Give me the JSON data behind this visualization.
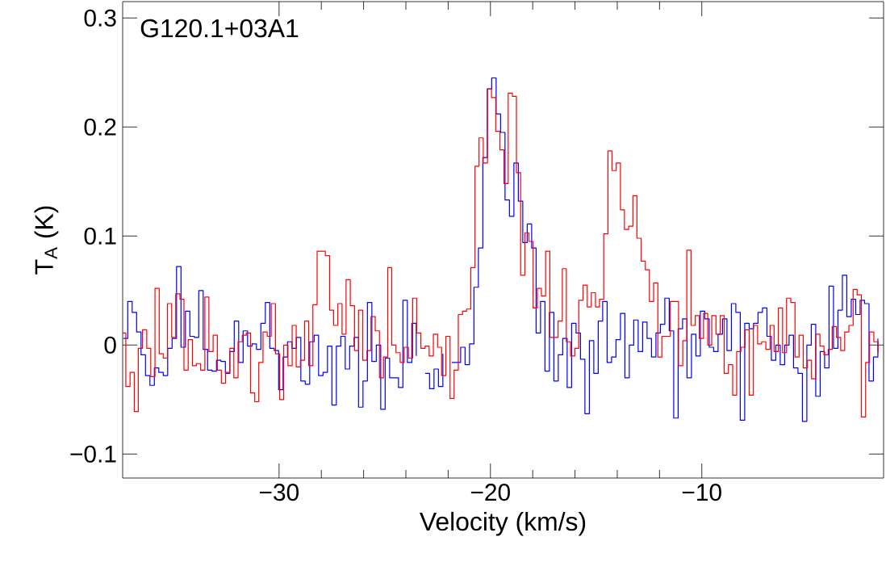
{
  "chart_data": {
    "type": "step",
    "title": "G120.1+03A1",
    "xlabel": "Velocity (km/s)",
    "ylabel": "T$_{A}$ (K)",
    "xlim": [
      -37.4,
      -1.4
    ],
    "ylim": [
      -0.122,
      0.315
    ],
    "xticks": [
      {
        "value": -30,
        "label": "−30"
      },
      {
        "value": -20,
        "label": "−20"
      },
      {
        "value": -10,
        "label": "−10"
      }
    ],
    "yticks": [
      {
        "value": -0.1,
        "label": "−0.1"
      },
      0,
      0.1,
      0.2,
      0.3
    ],
    "line_style": "solid",
    "series": [
      {
        "color": "#0000ff",
        "x": [
          -37.37,
          -37.16,
          -36.95,
          -36.74,
          -36.53,
          -36.32,
          -36.11,
          -35.9,
          -35.69,
          -35.48,
          -35.27,
          -35.06,
          -34.85,
          -34.64,
          -34.43,
          -34.22,
          -34.01,
          -33.8,
          -33.59,
          -33.38,
          -33.17,
          -32.96,
          -32.75,
          -32.54,
          -32.33,
          -32.12,
          -31.91,
          -31.7,
          -31.49,
          -31.28,
          -31.07,
          -30.86,
          -30.65,
          -30.44,
          -30.23,
          -30.02,
          -29.81,
          -29.6,
          -29.39,
          -29.18,
          -28.97,
          -28.76,
          -28.55,
          -28.34,
          -28.13,
          -27.92,
          -27.71,
          -27.5,
          -27.29,
          -27.08,
          -26.87,
          -26.66,
          -26.45,
          -26.24,
          -26.03,
          -25.82,
          -25.61,
          -25.4,
          -25.19,
          -24.98,
          -24.77,
          -24.56,
          -24.35,
          -24.14,
          -23.93,
          -23.72,
          -23.51,
          -23.3,
          -23.09,
          -22.88,
          -22.67,
          -22.46,
          -22.25,
          -22.04,
          -21.83,
          -21.62,
          -21.41,
          -21.2,
          -20.99,
          -20.78,
          -20.57,
          -20.36,
          -20.15,
          -19.94,
          -19.73,
          -19.52,
          -19.31,
          -19.1,
          -18.89,
          -18.68,
          -18.47,
          -18.26,
          -18.05,
          -17.84,
          -17.63,
          -17.42,
          -17.21,
          -17.0,
          -16.79,
          -16.58,
          -16.37,
          -16.16,
          -15.95,
          -15.74,
          -15.53,
          -15.32,
          -15.11,
          -14.9,
          -14.69,
          -14.48,
          -14.27,
          -14.06,
          -13.85,
          -13.64,
          -13.43,
          -13.22,
          -13.01,
          -12.8,
          -12.59,
          -12.38,
          -12.17,
          -11.96,
          -11.75,
          -11.54,
          -11.33,
          -11.12,
          -10.91,
          -10.7,
          -10.49,
          -10.28,
          -10.07,
          -9.86,
          -9.65,
          -9.44,
          -9.23,
          -9.02,
          -8.81,
          -8.6,
          -8.39,
          -8.18,
          -7.97,
          -7.76,
          -7.55,
          -7.34,
          -7.13,
          -6.92,
          -6.71,
          -6.5,
          -6.29,
          -6.08,
          -5.87,
          -5.66,
          -5.45,
          -5.24,
          -5.03,
          -4.82,
          -4.61,
          -4.4,
          -4.19,
          -3.98,
          -3.77,
          -3.56,
          -3.35,
          -3.14,
          -2.93,
          -2.72,
          -2.51,
          -2.3,
          -2.09,
          -1.88,
          -1.67
        ],
        "values": [
          0.006,
          0.04,
          0.03,
          0.012,
          -0.009,
          -0.028,
          -0.037,
          -0.021,
          -0.025,
          -0.028,
          -0.003,
          0.006,
          0.072,
          -0.002,
          0.031,
          0.008,
          0.007,
          0.05,
          -0.004,
          -0.023,
          -0.024,
          -0.014,
          -0.015,
          -0.026,
          -0.006,
          0.022,
          -0.016,
          0.013,
          -0.001,
          0.001,
          -0.004,
          0.02,
          0.039,
          -0.003,
          -0.005,
          -0.041,
          -0.011,
          0.003,
          -0.003,
          0.007,
          -0.033,
          -0.036,
          0.003,
          0.009,
          -0.028,
          -0.025,
          -0.001,
          -0.055,
          -0.001,
          0.008,
          -0.022,
          -0.001,
          0.007,
          -0.057,
          -0.033,
          0.039,
          -0.015,
          0.0,
          -0.059,
          -0.012,
          -0.03,
          -0.03,
          -0.039,
          0.041,
          -0.016,
          0.02,
          -0.01,
          null,
          -0.026,
          -0.04,
          -0.022,
          -0.038,
          -0.008,
          null,
          -0.016,
          -0.016,
          -0.002,
          -0.018,
          0.001,
          0.053,
          0.089,
          0.172,
          0.235,
          0.245,
          0.212,
          0.195,
          0.133,
          0.118,
          0.167,
          0.132,
          0.094,
          0.111,
          0.089,
          0.011,
          0.04,
          -0.024,
          0.03,
          -0.033,
          -0.009,
          0.006,
          -0.039,
          0.02,
          0.011,
          -0.013,
          -0.063,
          0.004,
          -0.026,
          0.022,
          0.04,
          -0.016,
          -0.011,
          0.005,
          0.029,
          -0.03,
          0.0,
          0.023,
          -0.006,
          0.021,
          0.006,
          -0.011,
          0.011,
          0.019,
          0.043,
          0.013,
          -0.067,
          0.015,
          0.024,
          -0.03,
          0.01,
          -0.01,
          0.031,
          0.024,
          -0.002,
          -0.006,
          0.01,
          0.024,
          -0.005,
          0.038,
          0.03,
          -0.069,
          0.02,
          0.015,
          0.02,
          0.03,
          0.034,
          0.008,
          -0.014,
          0.0,
          -0.018,
          0.0,
          0.009,
          -0.021,
          -0.026,
          -0.07,
          0.0,
          0.019,
          -0.047,
          -0.006,
          -0.021,
          0.054,
          -0.003,
          0.032,
          0.064,
          0.026,
          0.042,
          0.028,
          0.041,
          0.038,
          -0.033,
          -0.011,
          0.006
        ]
      },
      {
        "color": "#ff0000",
        "x": [
          -37.4,
          -37.25,
          -37.05,
          -36.85,
          -36.66,
          -36.46,
          -36.26,
          -36.07,
          -35.87,
          -35.67,
          -35.48,
          -35.28,
          -35.08,
          -34.89,
          -34.69,
          -34.5,
          -34.3,
          -34.1,
          -33.91,
          -33.71,
          -33.51,
          -33.32,
          -33.12,
          -32.92,
          -32.73,
          -32.53,
          -32.33,
          -32.14,
          -31.94,
          -31.74,
          -31.55,
          -31.35,
          -31.15,
          -30.96,
          -30.76,
          -30.56,
          -30.37,
          -30.17,
          -29.97,
          -29.78,
          -29.58,
          -29.38,
          -29.19,
          -28.99,
          -28.79,
          -28.6,
          -28.4,
          -28.2,
          -28.01,
          -27.81,
          -27.61,
          -27.42,
          -27.22,
          -27.02,
          -26.83,
          -26.63,
          -26.43,
          -26.24,
          -26.04,
          -25.84,
          -25.65,
          -25.45,
          -25.25,
          -25.06,
          -24.86,
          -24.67,
          -24.47,
          -24.27,
          -24.08,
          -23.88,
          -23.68,
          -23.49,
          -23.29,
          -23.09,
          -22.9,
          -22.7,
          -22.5,
          -22.31,
          -22.11,
          -21.91,
          -21.72,
          -21.52,
          -21.32,
          -21.13,
          -20.93,
          -20.73,
          -20.54,
          -20.34,
          -20.14,
          -19.95,
          -19.75,
          -19.55,
          -19.36,
          -19.16,
          -18.96,
          -18.77,
          -18.57,
          -18.37,
          -18.18,
          -17.98,
          -17.78,
          -17.59,
          -17.39,
          -17.19,
          -17.0,
          -16.8,
          -16.6,
          -16.41,
          -16.21,
          -16.01,
          -15.82,
          -15.62,
          -15.42,
          -15.23,
          -15.03,
          -14.84,
          -14.64,
          -14.44,
          -14.25,
          -14.05,
          -13.85,
          -13.66,
          -13.46,
          -13.26,
          -13.07,
          -12.87,
          -12.67,
          -12.48,
          -12.28,
          -12.08,
          -11.89,
          -11.69,
          -11.49,
          -11.3,
          -11.1,
          -10.9,
          -10.71,
          -10.51,
          -10.31,
          -10.12,
          -9.92,
          -9.72,
          -9.53,
          -9.33,
          -9.13,
          -8.94,
          -8.74,
          -8.54,
          -8.35,
          -8.15,
          -7.95,
          -7.76,
          -7.56,
          -7.36,
          -7.17,
          -6.97,
          -6.77,
          -6.58,
          -6.38,
          -6.18,
          -5.99,
          -5.79,
          -5.59,
          -5.4,
          -5.2,
          -5.0,
          -4.81,
          -4.61,
          -4.41,
          -4.22,
          -4.02,
          -3.83,
          -3.63,
          -3.43,
          -3.24,
          -3.04,
          -2.84,
          -2.65,
          -2.45,
          -2.25,
          -2.06,
          -1.86,
          -1.66
        ],
        "values": [
          0.011,
          -0.038,
          -0.025,
          -0.061,
          -0.003,
          0.014,
          -0.003,
          -0.029,
          0.052,
          -0.008,
          -0.012,
          0.038,
          0.007,
          0.047,
          0.042,
          -0.023,
          0.005,
          -0.019,
          -0.017,
          -0.023,
          0.044,
          -0.006,
          0.009,
          -0.023,
          -0.035,
          -0.025,
          -0.003,
          -0.03,
          0.003,
          0.009,
          0.011,
          -0.044,
          -0.052,
          -0.016,
          0.012,
          0.008,
          0.038,
          -0.008,
          -0.05,
          0.0,
          -0.019,
          0.018,
          -0.02,
          -0.014,
          0.022,
          -0.019,
          0.037,
          0.086,
          0.086,
          0.082,
          0.032,
          0.018,
          0.038,
          0.01,
          0.06,
          0.036,
          -0.005,
          0.032,
          -0.014,
          -0.005,
          0.026,
          0.013,
          -0.03,
          -0.011,
          0.071,
          0.0,
          -0.007,
          -0.016,
          -0.002,
          -0.012,
          0.043,
          0.011,
          -0.003,
          -0.001,
          -0.01,
          0.01,
          -0.002,
          -0.028,
          0.008,
          -0.049,
          -0.023,
          0.028,
          0.031,
          0.033,
          0.071,
          0.164,
          0.19,
          0.167,
          0.235,
          0.227,
          0.196,
          0.179,
          0.148,
          0.231,
          0.228,
          0.158,
          0.064,
          0.103,
          0.095,
          0.034,
          0.052,
          0.045,
          0.086,
          0.007,
          0.007,
          0.022,
          0.07,
          0.003,
          -0.01,
          -0.003,
          0.041,
          0.055,
          0.035,
          0.048,
          0.035,
          0.042,
          0.102,
          0.178,
          0.16,
          0.167,
          0.124,
          0.106,
          0.109,
          0.137,
          0.098,
          0.077,
          0.069,
          0.04,
          0.057,
          -0.011,
          0.008,
          0.008,
          0.04,
          0.04,
          -0.019,
          0.004,
          0.087,
          0.018,
          0.027,
          0.006,
          0.029,
          0.0,
          0.027,
          0.01,
          0.027,
          -0.026,
          -0.018,
          -0.046,
          -0.006,
          -0.002,
          0.014,
          -0.046,
          0.018,
          0.001,
          0.003,
          -0.004,
          0.018,
          -0.006,
          0.034,
          -0.007,
          0.043,
          0.039,
          -0.011,
          0.009,
          -0.021,
          -0.014,
          -0.031,
          0.01,
          -0.001,
          -0.009,
          -0.004,
          0.017,
          0.007,
          -0.005,
          0.012,
          0.018,
          0.051,
          0.046,
          -0.066,
          -0.016,
          0.012,
          0.003,
          -0.007
        ]
      }
    ]
  }
}
